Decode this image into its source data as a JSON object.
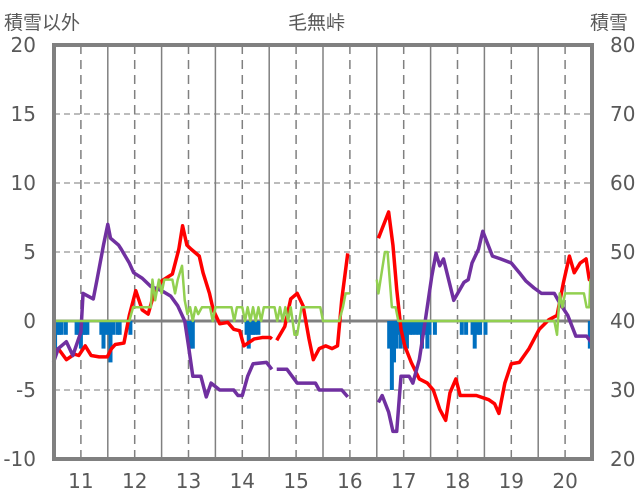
{
  "chart_data": {
    "type": "line",
    "title": "毛無峠",
    "ylabel_left": "積雪以外",
    "ylabel_right": "積雪",
    "xlim": [
      10.5,
      20.5
    ],
    "ylim_left": [
      -10,
      20
    ],
    "ylim_right": [
      20,
      80
    ],
    "yticks_left": [
      "20",
      "15",
      "10",
      "5",
      "0",
      "-5",
      "-10"
    ],
    "yticks_right": [
      "80",
      "70",
      "60",
      "50",
      "40",
      "30",
      "20"
    ],
    "xticks": [
      "11",
      "12",
      "13",
      "14",
      "15",
      "16",
      "17",
      "18",
      "19",
      "20"
    ],
    "grid": true,
    "colors": {
      "red": "#ff0000",
      "purple": "#7030a0",
      "green": "#92d050",
      "blue": "#0070c0",
      "axis": "#808080",
      "text": "#595959"
    },
    "series": [
      {
        "name": "red",
        "axis": "left",
        "color": "#ff0000",
        "segments": [
          [
            [
              10.49,
              -2.5
            ],
            [
              10.58,
              -2
            ],
            [
              10.73,
              -2.8
            ],
            [
              10.88,
              -2.4
            ],
            [
              10.96,
              -2.5
            ],
            [
              11.08,
              -1.8
            ],
            [
              11.19,
              -2.5
            ],
            [
              11.34,
              -2.6
            ],
            [
              11.49,
              -2.6
            ],
            [
              11.57,
              -2
            ],
            [
              11.64,
              -1.7
            ],
            [
              11.8,
              -1.6
            ],
            [
              11.9,
              0.4
            ],
            [
              12.02,
              2.2
            ],
            [
              12.14,
              0.8
            ],
            [
              12.25,
              0.5
            ],
            [
              12.36,
              2
            ],
            [
              12.5,
              2.9
            ],
            [
              12.7,
              3.4
            ],
            [
              12.82,
              5.2
            ],
            [
              12.89,
              6.9
            ],
            [
              12.97,
              5.5
            ],
            [
              13.05,
              5.2
            ],
            [
              13.2,
              4.7
            ],
            [
              13.27,
              3.5
            ],
            [
              13.39,
              2
            ],
            [
              13.46,
              0.8
            ],
            [
              13.58,
              -0.2
            ],
            [
              13.73,
              -0.1
            ],
            [
              13.84,
              -0.6
            ],
            [
              13.95,
              -0.7
            ],
            [
              14.03,
              -1.8
            ],
            [
              14.22,
              -1.3
            ],
            [
              14.37,
              -1.2
            ],
            [
              14.52,
              -1.2
            ],
            [
              14.55,
              -1.3
            ]
          ],
          [
            [
              14.64,
              -1.4
            ],
            [
              14.79,
              -0.4
            ],
            [
              14.9,
              1.6
            ],
            [
              15.02,
              2
            ],
            [
              15.13,
              1.1
            ],
            [
              15.24,
              -1.3
            ],
            [
              15.32,
              -2.8
            ],
            [
              15.43,
              -2
            ],
            [
              15.55,
              -1.8
            ],
            [
              15.67,
              -2
            ],
            [
              15.77,
              -1.8
            ],
            [
              15.85,
              1.6
            ],
            [
              15.96,
              4.9
            ]
          ],
          [
            [
              16.53,
              6
            ],
            [
              16.72,
              7.9
            ],
            [
              16.8,
              5.5
            ],
            [
              16.87,
              2.3
            ],
            [
              16.95,
              -0.6
            ],
            [
              17.02,
              -1.8
            ],
            [
              17.14,
              -3
            ],
            [
              17.29,
              -4.2
            ],
            [
              17.44,
              -4.5
            ],
            [
              17.55,
              -5
            ],
            [
              17.67,
              -6.4
            ],
            [
              17.78,
              -7.2
            ],
            [
              17.86,
              -5.2
            ],
            [
              17.97,
              -4.2
            ],
            [
              18.05,
              -5.4
            ],
            [
              18.35,
              -5.4
            ],
            [
              18.58,
              -5.7
            ],
            [
              18.69,
              -6
            ],
            [
              18.77,
              -6.7
            ],
            [
              18.88,
              -4.5
            ],
            [
              19.0,
              -3.1
            ],
            [
              19.15,
              -3
            ],
            [
              19.33,
              -2
            ],
            [
              19.52,
              -0.6
            ],
            [
              19.7,
              0.1
            ],
            [
              19.85,
              0.4
            ],
            [
              19.97,
              2.8
            ],
            [
              20.08,
              4.7
            ],
            [
              20.17,
              3.5
            ],
            [
              20.28,
              4.2
            ],
            [
              20.39,
              4.5
            ],
            [
              20.45,
              3
            ],
            [
              20.5,
              3.5
            ]
          ]
        ]
      },
      {
        "name": "purple",
        "axis": "right",
        "color": "#7030a0",
        "segments": [
          [
            [
              10.49,
              34
            ],
            [
              10.58,
              36
            ],
            [
              10.73,
              37
            ],
            [
              10.85,
              35
            ],
            [
              11.0,
              38.4
            ],
            [
              11.04,
              44
            ],
            [
              11.23,
              43.2
            ],
            [
              11.3,
              46
            ],
            [
              11.42,
              51
            ],
            [
              11.5,
              54
            ],
            [
              11.55,
              52
            ],
            [
              11.7,
              51
            ],
            [
              11.75,
              50.4
            ],
            [
              11.9,
              48.4
            ],
            [
              11.98,
              47
            ],
            [
              12.14,
              46.2
            ],
            [
              12.3,
              45
            ],
            [
              12.5,
              44.4
            ],
            [
              12.67,
              43.6
            ],
            [
              12.8,
              42.2
            ],
            [
              12.93,
              40
            ],
            [
              13.0,
              36.4
            ],
            [
              13.08,
              32
            ],
            [
              13.23,
              32
            ],
            [
              13.33,
              29
            ],
            [
              13.42,
              31
            ],
            [
              13.58,
              30
            ],
            [
              13.84,
              30
            ],
            [
              13.92,
              29.2
            ],
            [
              14.0,
              29.2
            ],
            [
              14.1,
              32
            ],
            [
              14.2,
              33.8
            ],
            [
              14.45,
              34
            ],
            [
              14.55,
              33
            ]
          ],
          [
            [
              14.64,
              33
            ],
            [
              14.83,
              33
            ],
            [
              15.02,
              31
            ],
            [
              15.36,
              31
            ],
            [
              15.43,
              30
            ],
            [
              15.85,
              30
            ],
            [
              15.96,
              29
            ]
          ],
          [
            [
              16.53,
              28.2
            ],
            [
              16.6,
              29.2
            ],
            [
              16.72,
              26.8
            ],
            [
              16.8,
              24
            ],
            [
              16.87,
              24
            ],
            [
              16.95,
              32
            ],
            [
              17.1,
              32
            ],
            [
              17.17,
              31
            ],
            [
              17.29,
              34.4
            ],
            [
              17.4,
              40
            ],
            [
              17.52,
              46.4
            ],
            [
              17.6,
              49.8
            ],
            [
              17.67,
              48
            ],
            [
              17.74,
              49
            ],
            [
              17.93,
              43
            ],
            [
              18.12,
              45.6
            ],
            [
              18.2,
              46
            ],
            [
              18.27,
              48.4
            ],
            [
              18.39,
              50.4
            ],
            [
              18.47,
              53
            ],
            [
              18.58,
              50.8
            ],
            [
              18.65,
              49.4
            ],
            [
              18.8,
              49
            ],
            [
              19.0,
              48.4
            ],
            [
              19.15,
              47
            ],
            [
              19.27,
              45.8
            ],
            [
              19.42,
              44.8
            ],
            [
              19.56,
              44
            ],
            [
              19.8,
              44
            ],
            [
              19.9,
              42.6
            ],
            [
              20.05,
              40.8
            ],
            [
              20.2,
              37.8
            ],
            [
              20.4,
              37.8
            ],
            [
              20.5,
              36.8
            ]
          ]
        ]
      },
      {
        "name": "green",
        "axis": "left",
        "color": "#92d050",
        "segments": [
          [
            [
              10.5,
              0
            ],
            [
              11.9,
              0
            ],
            [
              11.97,
              1
            ],
            [
              12.3,
              1
            ],
            [
              12.33,
              3
            ],
            [
              12.38,
              1.5
            ],
            [
              12.45,
              3
            ],
            [
              12.5,
              2
            ],
            [
              12.55,
              3
            ],
            [
              12.7,
              3
            ],
            [
              12.75,
              2
            ],
            [
              12.8,
              3
            ],
            [
              12.88,
              4
            ],
            [
              12.93,
              1.5
            ],
            [
              12.98,
              0.5
            ],
            [
              13.03,
              1
            ],
            [
              13.08,
              0
            ],
            [
              13.13,
              1
            ],
            [
              13.18,
              0.5
            ],
            [
              13.25,
              1
            ],
            [
              13.4,
              1
            ],
            [
              13.45,
              0
            ],
            [
              13.5,
              1
            ],
            [
              13.8,
              1
            ],
            [
              13.85,
              0
            ],
            [
              13.9,
              1
            ],
            [
              14.0,
              1
            ],
            [
              14.05,
              0
            ],
            [
              14.1,
              1
            ],
            [
              14.15,
              0
            ],
            [
              14.2,
              1
            ],
            [
              14.25,
              0
            ],
            [
              14.3,
              1
            ],
            [
              14.35,
              0
            ],
            [
              14.4,
              1
            ],
            [
              14.6,
              1
            ],
            [
              14.65,
              0
            ],
            [
              14.7,
              1
            ],
            [
              14.75,
              0
            ],
            [
              14.8,
              1
            ],
            [
              14.85,
              0
            ],
            [
              14.9,
              1
            ],
            [
              14.97,
              -1
            ],
            [
              15.02,
              -1
            ],
            [
              15.1,
              1
            ],
            [
              15.45,
              1
            ],
            [
              15.5,
              0
            ],
            [
              15.8,
              0
            ],
            [
              15.87,
              1
            ],
            [
              15.92,
              2
            ],
            [
              16.0,
              2
            ]
          ],
          [
            [
              16.5,
              3
            ],
            [
              16.53,
              2
            ],
            [
              16.65,
              5
            ],
            [
              16.7,
              5
            ],
            [
              16.78,
              1
            ],
            [
              16.85,
              1
            ],
            [
              16.9,
              0
            ],
            [
              19.8,
              0
            ],
            [
              19.85,
              -1
            ],
            [
              19.9,
              2
            ],
            [
              19.95,
              1
            ],
            [
              20.0,
              2
            ],
            [
              20.35,
              2
            ],
            [
              20.4,
              1
            ],
            [
              20.45,
              1
            ],
            [
              20.47,
              3
            ],
            [
              20.5,
              1
            ]
          ]
        ]
      }
    ],
    "bars": {
      "name": "blue",
      "axis": "left",
      "color": "#0070c0",
      "values": [
        [
          10.52,
          -2
        ],
        [
          10.56,
          -1
        ],
        [
          10.6,
          -1
        ],
        [
          10.64,
          -1
        ],
        [
          10.72,
          -1
        ],
        [
          10.92,
          -1
        ],
        [
          10.96,
          -1
        ],
        [
          11.0,
          -2
        ],
        [
          11.04,
          -1
        ],
        [
          11.08,
          -1
        ],
        [
          11.12,
          -1
        ],
        [
          11.38,
          -1
        ],
        [
          11.42,
          -2
        ],
        [
          11.46,
          -1
        ],
        [
          11.52,
          -1
        ],
        [
          11.55,
          -3
        ],
        [
          11.6,
          -1
        ],
        [
          11.68,
          -1
        ],
        [
          11.72,
          -1
        ],
        [
          11.92,
          -1
        ],
        [
          13.0,
          -1
        ],
        [
          13.04,
          -2
        ],
        [
          13.08,
          -2
        ],
        [
          14.08,
          -1
        ],
        [
          14.12,
          -2
        ],
        [
          14.16,
          -1
        ],
        [
          14.2,
          -1
        ],
        [
          14.24,
          -1
        ],
        [
          14.3,
          -1
        ],
        [
          16.73,
          -2
        ],
        [
          16.78,
          -5
        ],
        [
          16.82,
          -3
        ],
        [
          16.86,
          -2
        ],
        [
          16.9,
          -1
        ],
        [
          16.94,
          -2
        ],
        [
          16.98,
          -1
        ],
        [
          17.02,
          -2
        ],
        [
          17.06,
          -2
        ],
        [
          17.12,
          -1
        ],
        [
          17.16,
          -1
        ],
        [
          17.22,
          -1
        ],
        [
          17.28,
          -1
        ],
        [
          17.34,
          -2
        ],
        [
          17.38,
          -1
        ],
        [
          17.44,
          -2
        ],
        [
          17.48,
          -1
        ],
        [
          17.58,
          -1
        ],
        [
          18.08,
          -1
        ],
        [
          18.16,
          -1
        ],
        [
          18.28,
          -1
        ],
        [
          18.32,
          -2
        ],
        [
          18.38,
          -1
        ],
        [
          18.42,
          -1
        ],
        [
          18.52,
          -1
        ],
        [
          20.46,
          -2
        ],
        [
          20.49,
          -1
        ]
      ]
    }
  }
}
